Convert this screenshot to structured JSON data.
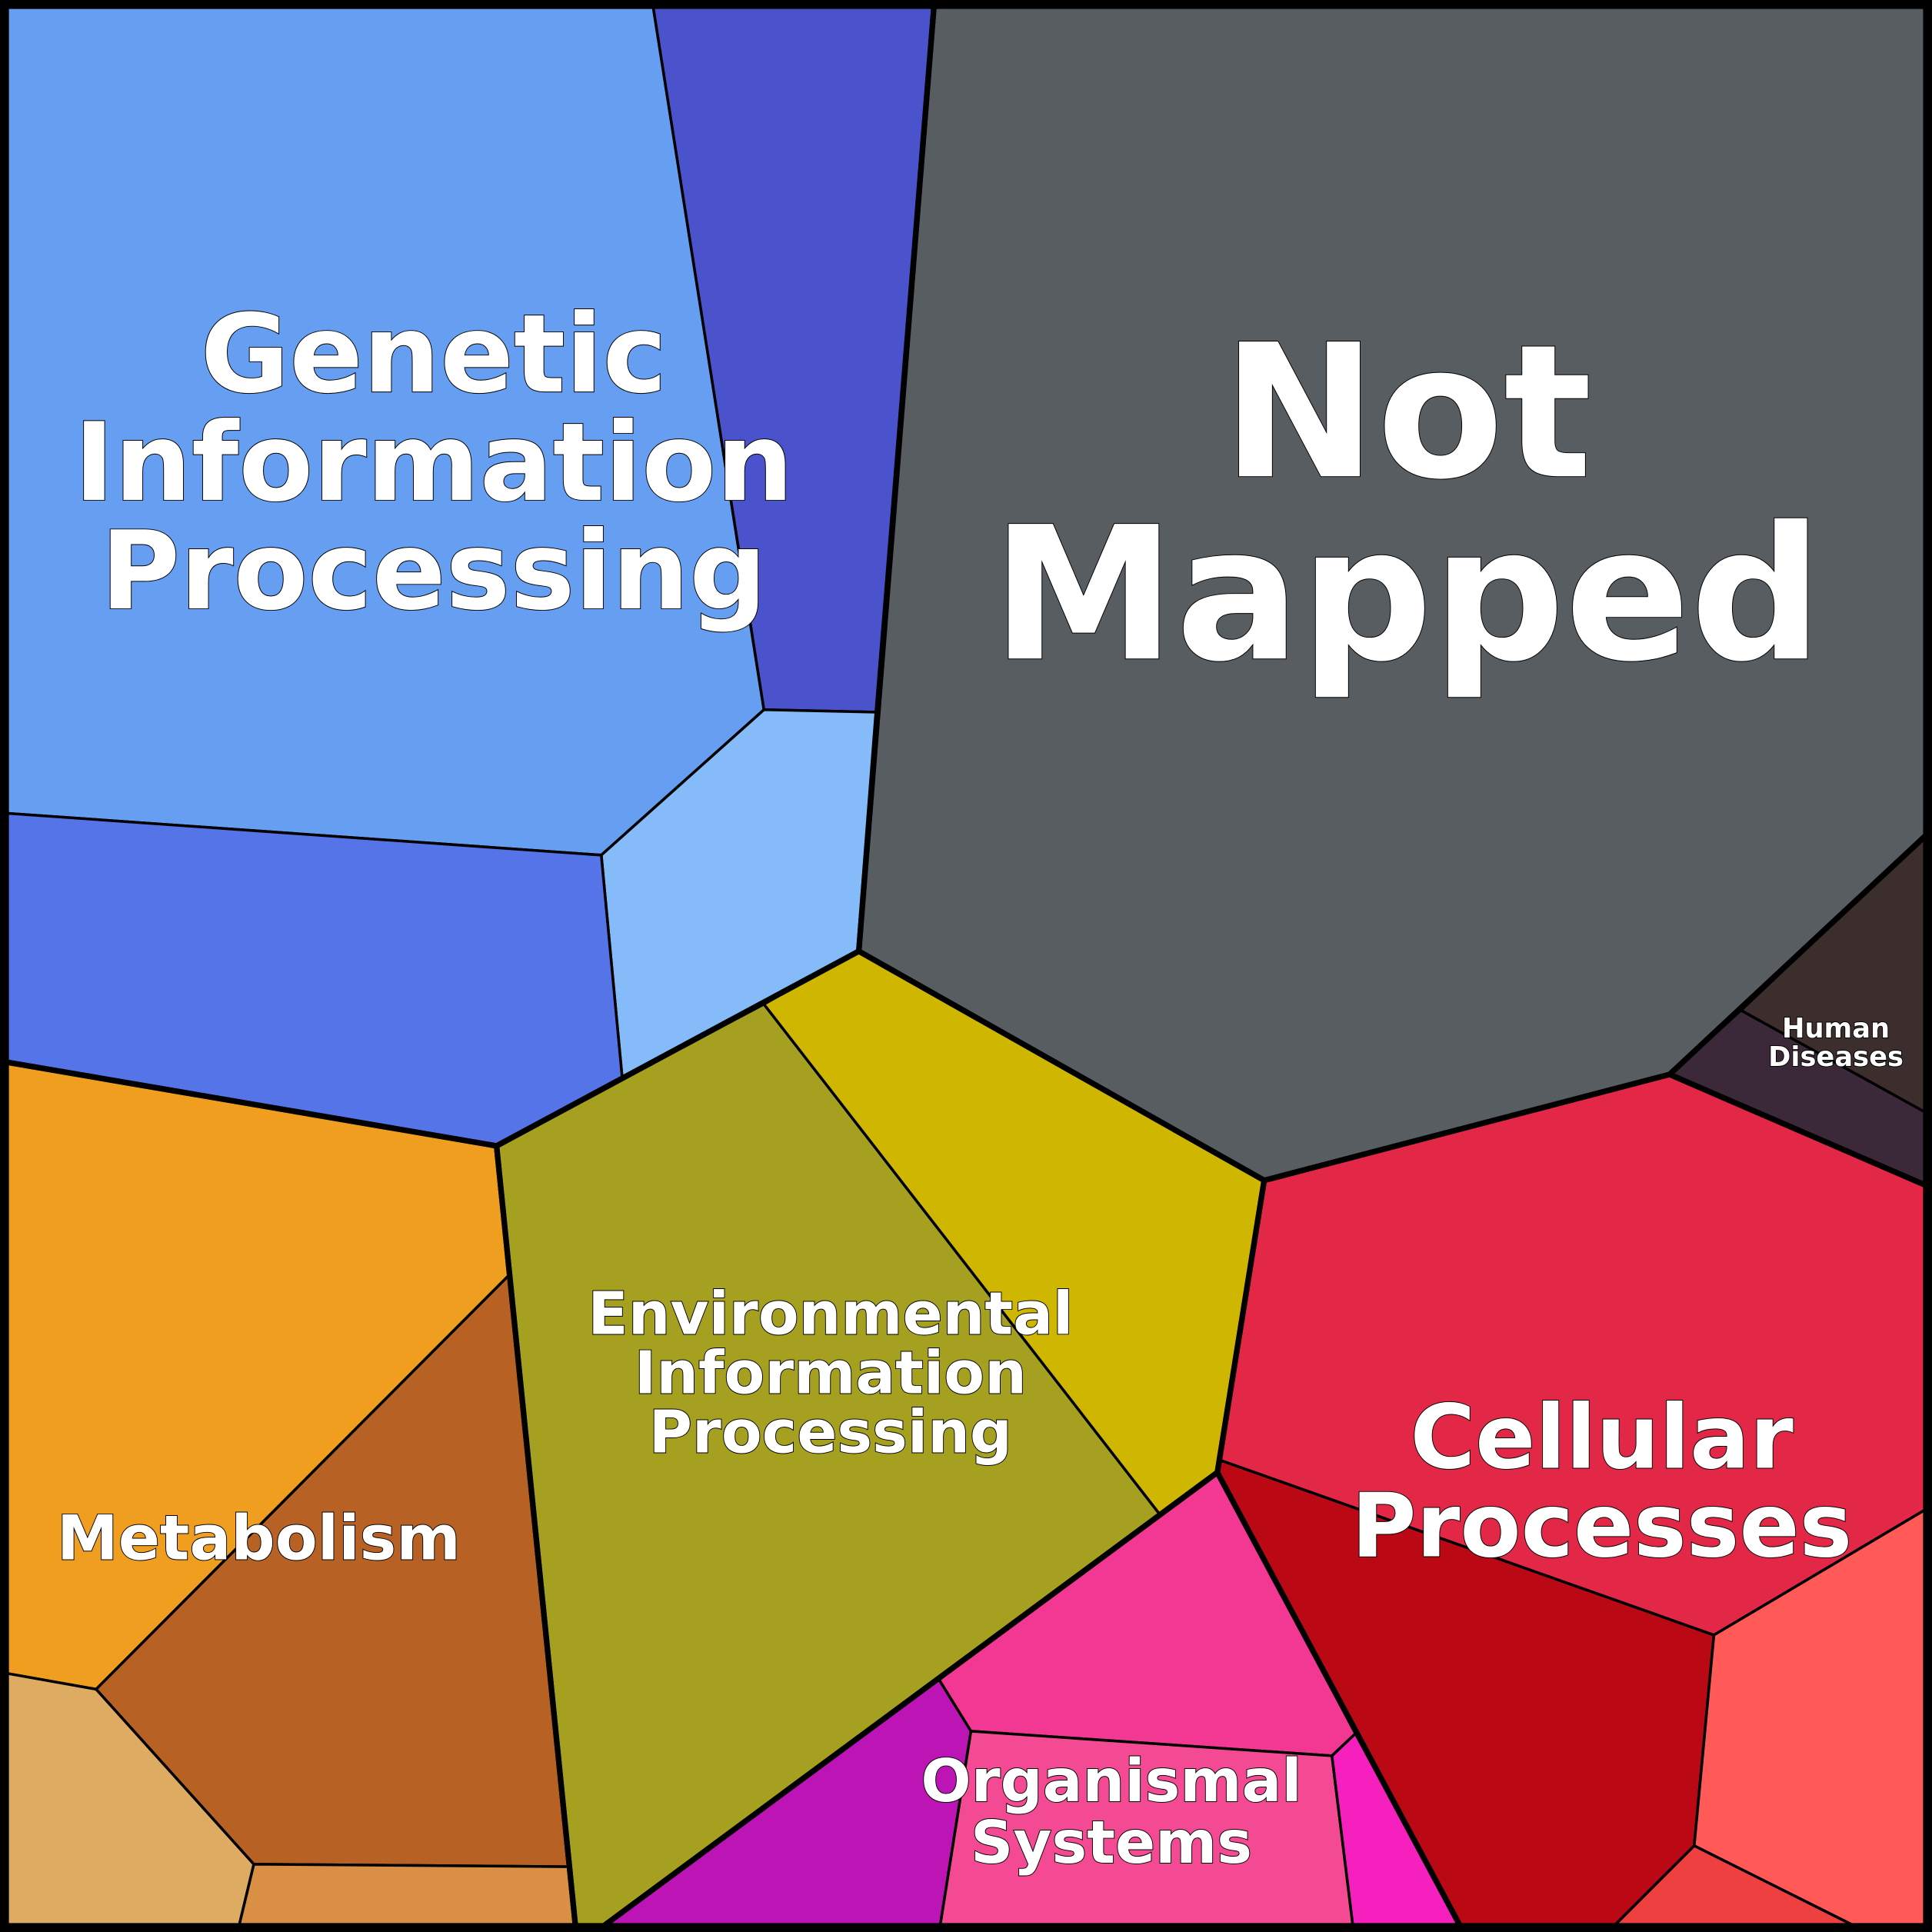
{
  "chart_data": {
    "type": "treemap",
    "layout": "voronoi",
    "groups": [
      {
        "label": "Genetic Information Processing",
        "lines": [
          "Genetic",
          "Information",
          "Processing"
        ],
        "cells": [
          "#669EF2",
          "#4A53CB",
          "#84BBF8",
          "#5574E8"
        ]
      },
      {
        "label": "Not Mapped",
        "lines": [
          "Not",
          "Mapped"
        ],
        "cells": [
          "#585D62"
        ]
      },
      {
        "label": "Human Diseases",
        "lines": [
          "Human",
          "Diseases"
        ],
        "cells": [
          "#3C2E2D",
          "#3B293A"
        ]
      },
      {
        "label": "Cellular Processes",
        "lines": [
          "Cellular",
          "Processes"
        ],
        "cells": [
          "#E22846",
          "#BA0915",
          "#FF5A57",
          "#EE4040"
        ]
      },
      {
        "label": "Environmental Information Processing",
        "lines": [
          "Environmental",
          "Information",
          "Processing"
        ],
        "cells": [
          "#A5A020",
          "#CFB600"
        ]
      },
      {
        "label": "Organismal Systems",
        "lines": [
          "Organismal",
          "Systems"
        ],
        "cells": [
          "#F23893",
          "#BD15B5",
          "#F44A93",
          "#F520BE"
        ]
      },
      {
        "label": "Metabolism",
        "lines": [
          "Metabolism"
        ],
        "cells": [
          "#EF9E20",
          "#B76224",
          "#DEAB62",
          "#D99044"
        ]
      }
    ]
  }
}
